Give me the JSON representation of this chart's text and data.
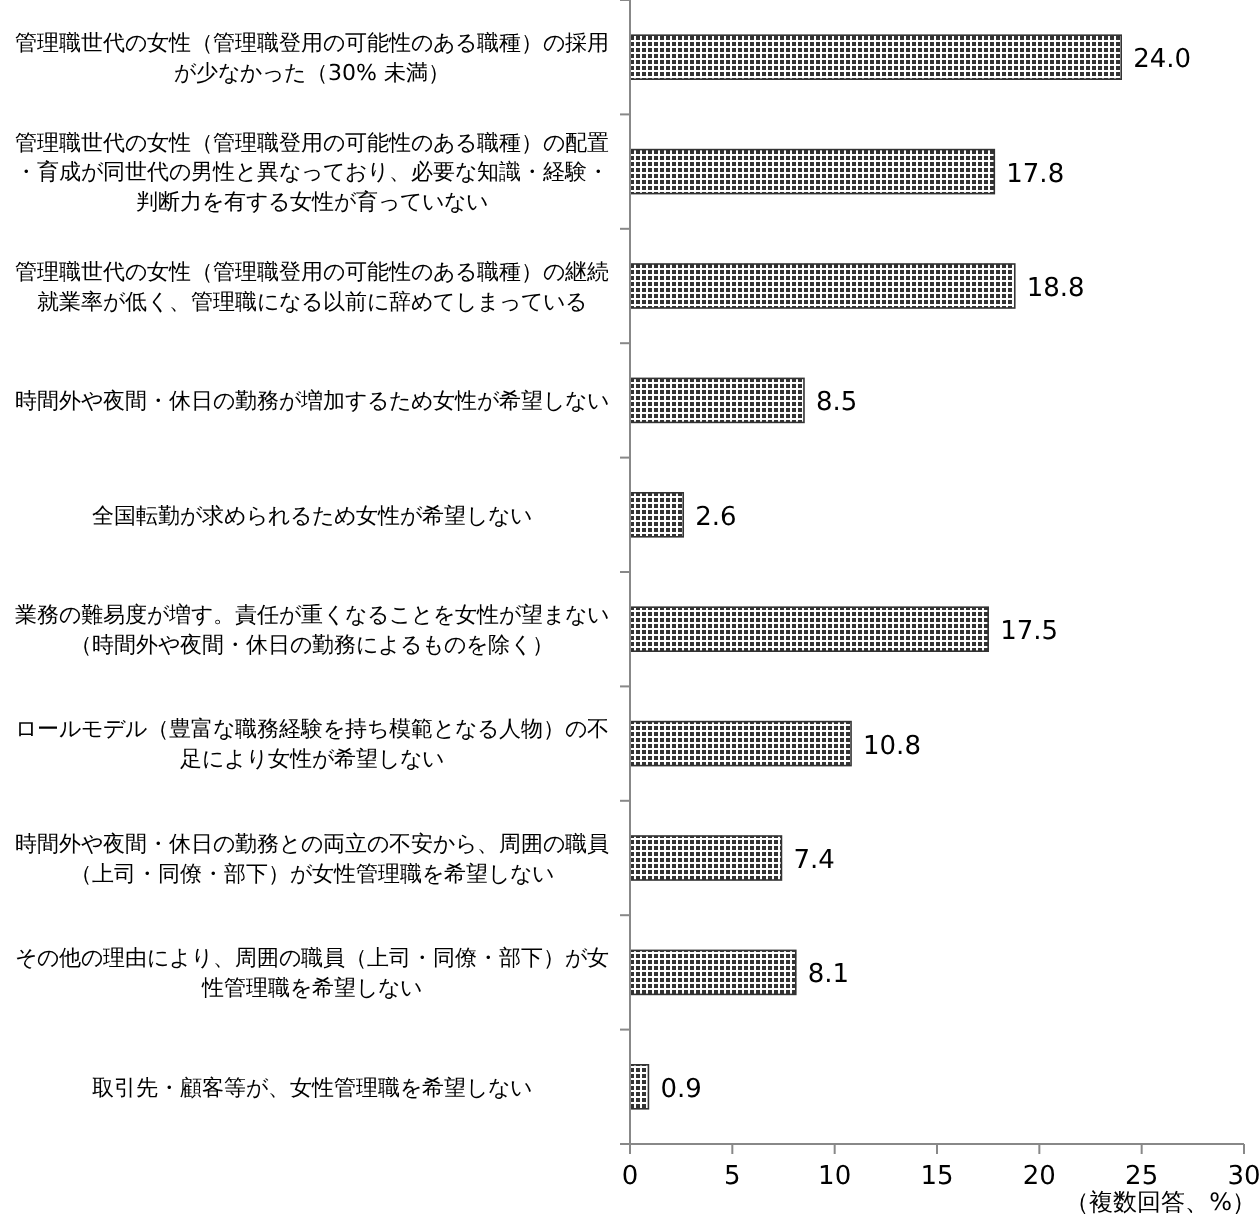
{
  "chart_data": {
    "type": "bar",
    "orientation": "horizontal",
    "categories": [
      "管理職世代の女性（管理職登用の可能性のある職種）の採用が少なかった（30% 未満）",
      "管理職世代の女性（管理職登用の可能性のある職種）の配置・育成が同世代の男性と異なっており、必要な知識・経験・判断力を有する女性が育っていない",
      "管理職世代の女性（管理職登用の可能性のある職種）の継続就業率が低く、管理職になる以前に辞めてしまっている",
      "時間外や夜間・休日の勤務が増加するため女性が希望しない",
      "全国転勤が求められるため女性が希望しない",
      "業務の難易度が増す。責任が重くなることを女性が望まない（時間外や夜間・休日の勤務によるものを除く）",
      "ロールモデル（豊富な職務経験を持ち模範となる人物）の不足により女性が希望しない",
      "時間外や夜間・休日の勤務との両立の不安から、周囲の職員（上司・同僚・部下）が女性管理職を希望しない",
      "その他の理由により、周囲の職員（上司・同僚・部下）が女性管理職を希望しない",
      "取引先・顧客等が、女性管理職を希望しない"
    ],
    "values": [
      24.0,
      17.8,
      18.8,
      8.5,
      2.6,
      17.5,
      10.8,
      7.4,
      8.1,
      0.9
    ],
    "value_labels": [
      "24.0",
      "17.8",
      "18.8",
      "8.5",
      "2.6",
      "17.5",
      "10.8",
      "7.4",
      "8.1",
      "0.9"
    ],
    "color": "#333333",
    "xlim": [
      0,
      30
    ],
    "xticks": [
      0,
      5,
      10,
      15,
      20,
      25,
      30
    ],
    "xlabel": "（複数回答、%）",
    "grid": false
  }
}
